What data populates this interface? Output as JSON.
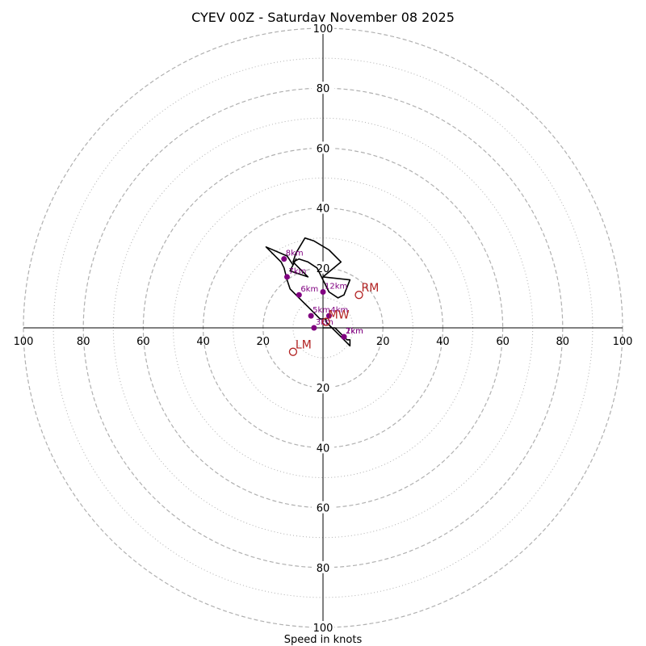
{
  "chart_data": {
    "type": "hodograph",
    "title": "CYEV 00Z - Saturday November 08 2025",
    "xlabel": "Speed in knots",
    "max_speed": 100,
    "rings_major": [
      20,
      40,
      60,
      80,
      100
    ],
    "rings_minor": [
      10,
      30,
      50,
      70,
      90
    ],
    "tick_labels": [
      "20",
      "40",
      "60",
      "80",
      "100"
    ],
    "grid": true,
    "hodograph_line": [
      [
        0,
        0
      ],
      [
        4,
        0
      ],
      [
        5,
        -1
      ],
      [
        6,
        -2
      ],
      [
        7,
        -3
      ],
      [
        8,
        -4
      ],
      [
        9,
        -4
      ],
      [
        9,
        -6
      ],
      [
        8,
        -5
      ],
      [
        6,
        -3
      ],
      [
        5,
        -2
      ],
      [
        4,
        -1
      ],
      [
        3,
        0
      ],
      [
        2,
        1
      ],
      [
        1,
        2
      ],
      [
        1,
        3
      ],
      [
        0,
        3
      ],
      [
        -1,
        3
      ],
      [
        -2,
        4
      ],
      [
        -4,
        6
      ],
      [
        -6,
        8
      ],
      [
        -8,
        10
      ],
      [
        -11,
        13
      ],
      [
        -12,
        16
      ],
      [
        -13,
        20
      ],
      [
        -14,
        22
      ],
      [
        -19,
        27
      ],
      [
        -12,
        24
      ],
      [
        -10,
        21
      ],
      [
        -9,
        23
      ],
      [
        -11,
        19
      ],
      [
        -5,
        17
      ],
      [
        -10,
        22
      ],
      [
        -9,
        25
      ],
      [
        -6,
        30
      ],
      [
        -3,
        29
      ],
      [
        2,
        26
      ],
      [
        6,
        22
      ],
      [
        0,
        17
      ],
      [
        9,
        16
      ],
      [
        7,
        11
      ],
      [
        5,
        10
      ],
      [
        2,
        12
      ],
      [
        -1,
        18
      ],
      [
        -2,
        20
      ],
      [
        -5,
        22
      ],
      [
        -8,
        23
      ],
      [
        -10,
        22
      ]
    ],
    "height_markers": [
      {
        "label": "1km",
        "u": 7,
        "v": -3
      },
      {
        "label": "2km",
        "u": 7,
        "v": -3
      },
      {
        "label": "3km",
        "u": -3,
        "v": 0
      },
      {
        "label": "4km",
        "u": 2,
        "v": 4
      },
      {
        "label": "5km",
        "u": -4,
        "v": 4
      },
      {
        "label": "6km",
        "u": -8,
        "v": 11
      },
      {
        "label": "7km",
        "u": -12,
        "v": 17
      },
      {
        "label": "8km",
        "u": -13,
        "v": 23
      },
      {
        "label": "12km",
        "u": 0,
        "v": 12
      }
    ],
    "motion_points": [
      {
        "label": "RM",
        "u": 12,
        "v": 11
      },
      {
        "label": "LM",
        "u": -10,
        "v": -8
      },
      {
        "label": "MW",
        "u": 1,
        "v": 2
      }
    ],
    "colors": {
      "hodograph": "#000000",
      "markers": "#800080",
      "motion": "#b22222",
      "grid": "#b0b0b0",
      "axes": "#000000"
    }
  }
}
